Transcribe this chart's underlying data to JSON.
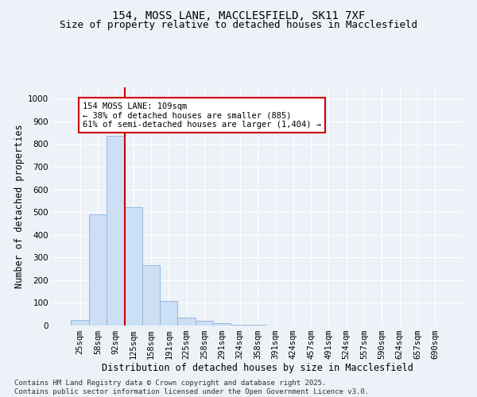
{
  "title_line1": "154, MOSS LANE, MACCLESFIELD, SK11 7XF",
  "title_line2": "Size of property relative to detached houses in Macclesfield",
  "xlabel": "Distribution of detached houses by size in Macclesfield",
  "ylabel": "Number of detached properties",
  "categories": [
    "25sqm",
    "58sqm",
    "92sqm",
    "125sqm",
    "158sqm",
    "191sqm",
    "225sqm",
    "258sqm",
    "291sqm",
    "324sqm",
    "358sqm",
    "391sqm",
    "424sqm",
    "457sqm",
    "491sqm",
    "524sqm",
    "557sqm",
    "590sqm",
    "624sqm",
    "657sqm",
    "690sqm"
  ],
  "values": [
    25,
    490,
    835,
    520,
    265,
    110,
    35,
    20,
    10,
    5,
    2,
    1,
    0,
    0,
    0,
    0,
    0,
    0,
    0,
    0,
    0
  ],
  "bar_color": "#ccdff5",
  "bar_edge_color": "#94b8dc",
  "vline_color": "#cc0000",
  "ylim": [
    0,
    1050
  ],
  "yticks": [
    0,
    100,
    200,
    300,
    400,
    500,
    600,
    700,
    800,
    900,
    1000
  ],
  "annotation_line1": "154 MOSS LANE: 109sqm",
  "annotation_line2": "← 38% of detached houses are smaller (885)",
  "annotation_line3": "61% of semi-detached houses are larger (1,404) →",
  "annotation_box_color": "#ffffff",
  "annotation_box_edge": "#cc0000",
  "footer_line1": "Contains HM Land Registry data © Crown copyright and database right 2025.",
  "footer_line2": "Contains public sector information licensed under the Open Government Licence v3.0.",
  "background_color": "#edf2f9",
  "grid_color": "#ffffff",
  "title_fontsize": 10,
  "subtitle_fontsize": 9,
  "axis_label_fontsize": 8.5,
  "tick_fontsize": 7.5,
  "annotation_fontsize": 7.5,
  "footer_fontsize": 6.5
}
